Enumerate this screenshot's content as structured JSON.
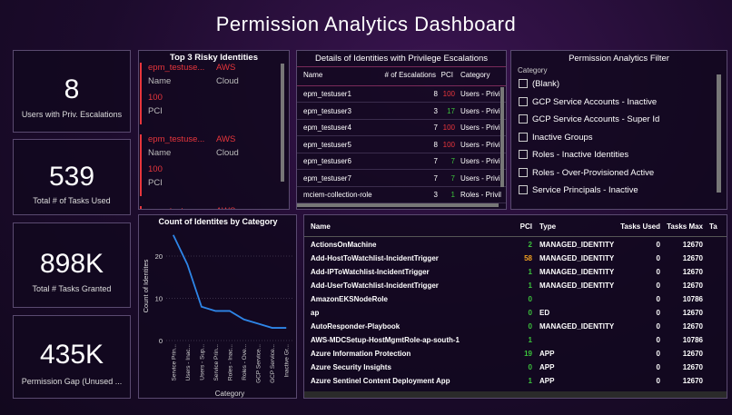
{
  "title": "Permission Analytics Dashboard",
  "kpis": [
    {
      "value": "8",
      "label": "Users with Priv. Escalations"
    },
    {
      "value": "539",
      "label": "Total # of Tasks Used"
    },
    {
      "value": "898K",
      "label": "Total # Tasks Granted"
    },
    {
      "value": "435K",
      "label": "Permission Gap (Unused ..."
    }
  ],
  "risky": {
    "title": "Top 3 Risky Identities",
    "items": [
      {
        "name": "epm_testuse...",
        "cloud": "AWS",
        "name_label": "Name",
        "cloud_label": "Cloud",
        "pci": 100,
        "pci_label": "PCI"
      },
      {
        "name": "epm_testuse...",
        "cloud": "AWS",
        "name_label": "Name",
        "cloud_label": "Cloud",
        "pci": 100,
        "pci_label": "PCI"
      },
      {
        "name": "epm_testuse...",
        "cloud": "AWS"
      }
    ]
  },
  "details": {
    "title": "Details of Identities with Privilege Escalations",
    "columns": [
      "Name",
      "# of Escalations",
      "PCI",
      "Category"
    ],
    "rows": [
      [
        "epm_testuser1",
        8,
        100,
        "Users - Privil"
      ],
      [
        "epm_testuser3",
        3,
        17,
        "Users - Privil"
      ],
      [
        "epm_testuser4",
        7,
        100,
        "Users - Privil"
      ],
      [
        "epm_testuser5",
        8,
        100,
        "Users - Privil"
      ],
      [
        "epm_testuser6",
        7,
        7,
        "Users - Privil"
      ],
      [
        "epm_testuser7",
        7,
        7,
        "Users - Privil"
      ],
      [
        "mciem-collection-role",
        3,
        1,
        "Roles - Privil"
      ]
    ],
    "pci_colors": [
      "#e8363c",
      "#3cc43c",
      "#e8363c",
      "#e8363c",
      "#3cc43c",
      "#3cc43c",
      "#3cc43c"
    ]
  },
  "filter": {
    "title": "Permission Analytics Filter",
    "label": "Category",
    "options": [
      "(Blank)",
      "GCP Service Accounts - Inactive",
      "GCP Service Accounts - Super Id",
      "Inactive Groups",
      "Roles - Inactive Identities",
      "Roles - Over-Provisioned Active",
      "Service Principals - Inactive"
    ]
  },
  "chart_data": {
    "type": "line",
    "title": "Count of Identites by Category",
    "x_label": "Category",
    "y_label": "Count of Identites",
    "categories": [
      "Service Prin...",
      "Users - Inac...",
      "Users - Sup...",
      "Service Prin...",
      "Roles - Inac...",
      "Roles - Ove...",
      "GCP Service...",
      "GCP Service...",
      "Inactive Gr..."
    ],
    "values": [
      25,
      18,
      8,
      7,
      7,
      5,
      4,
      3,
      3
    ],
    "color": "#2e86e8",
    "ylim": [
      0,
      27
    ],
    "yticks": [
      0,
      10,
      20
    ]
  },
  "table": {
    "columns": [
      "Name",
      "PCI",
      "Type",
      "Tasks Used",
      "Tasks Max",
      "Ta"
    ],
    "rows": [
      [
        "ActionsOnMachine",
        2,
        "MANAGED_IDENTITY",
        0,
        12670
      ],
      [
        "Add-HostToWatchlist-IncidentTrigger",
        58,
        "MANAGED_IDENTITY",
        0,
        12670
      ],
      [
        "Add-IPToWatchlist-IncidentTrigger",
        1,
        "MANAGED_IDENTITY",
        0,
        12670
      ],
      [
        "Add-UserToWatchlist-IncidentTrigger",
        1,
        "MANAGED_IDENTITY",
        0,
        12670
      ],
      [
        "AmazonEKSNodeRole",
        0,
        null,
        0,
        10786
      ],
      [
        "ap",
        0,
        "ED",
        0,
        12670
      ],
      [
        "AutoResponder-Playbook",
        0,
        "MANAGED_IDENTITY",
        0,
        12670
      ],
      [
        "AWS-MDCSetup-HostMgmtRole-ap-south-1",
        1,
        null,
        0,
        10786
      ],
      [
        "Azure Information Protection",
        19,
        "APP",
        0,
        12670
      ],
      [
        "Azure Security Insights",
        0,
        "APP",
        0,
        12670
      ],
      [
        "Azure Sentinel Content Deployment App",
        1,
        "APP",
        0,
        12670
      ]
    ],
    "pci_colors": [
      "#3cc43c",
      "#f0a020",
      "#3cc43c",
      "#3cc43c",
      "#3cc43c",
      "#3cc43c",
      "#3cc43c",
      "#3cc43c",
      "#3cc43c",
      "#3cc43c",
      "#3cc43c"
    ]
  }
}
